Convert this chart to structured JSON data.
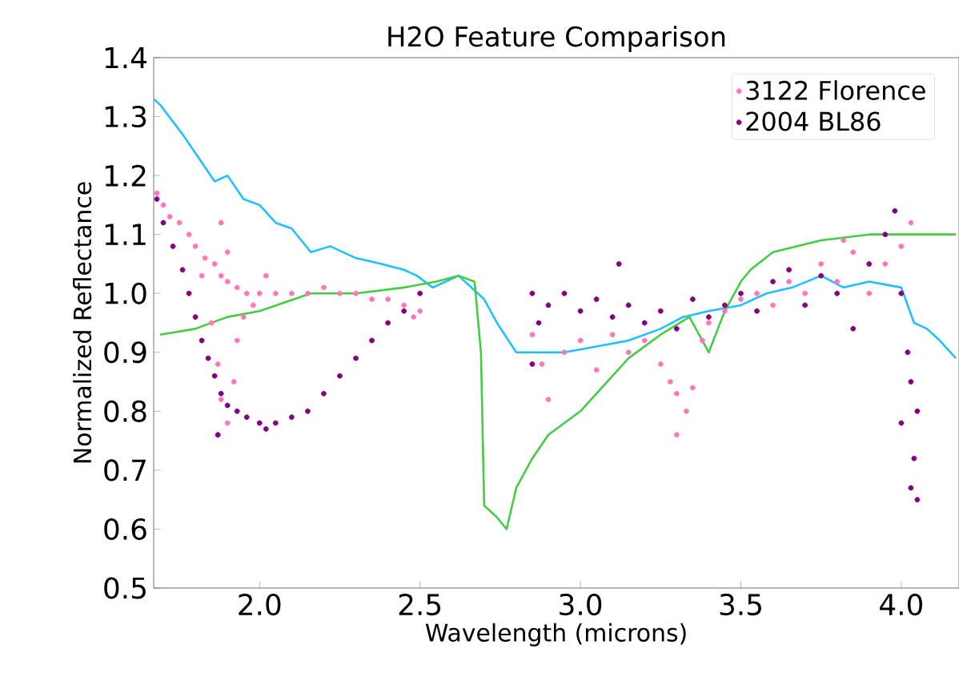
{
  "chart_data": {
    "type": "scatter",
    "title": "H2O Feature Comparison",
    "xlabel": "Wavelength (microns)",
    "ylabel": "Normalized Reflectance",
    "xlim": [
      1.67,
      4.18
    ],
    "ylim": [
      0.5,
      1.4
    ],
    "xticks": [
      {
        "value": 2.0,
        "label": "2.0"
      },
      {
        "value": 2.5,
        "label": "2.5"
      },
      {
        "value": 3.0,
        "label": "3.0"
      },
      {
        "value": 3.5,
        "label": "3.5"
      },
      {
        "value": 4.0,
        "label": "4.0"
      }
    ],
    "yticks": [
      0.5,
      0.6,
      0.7,
      0.8,
      0.9,
      {
        "value": 1.0,
        "label": "1.0"
      },
      1.1,
      1.2,
      1.3,
      1.4
    ],
    "grid": false,
    "legend": "top right",
    "series": [
      {
        "type": "line",
        "color": "#1ec0ff",
        "x": [
          1.67,
          1.69,
          1.76,
          1.81,
          1.86,
          1.9,
          1.95,
          2.0,
          2.05,
          2.1,
          2.16,
          2.22,
          2.3,
          2.38,
          2.45,
          2.49,
          2.54,
          2.58,
          2.62,
          2.66,
          2.7,
          2.74,
          2.8,
          2.87,
          2.95,
          3.05,
          3.15,
          3.25,
          3.32,
          3.4,
          3.5,
          3.58,
          3.66,
          3.75,
          3.82,
          3.9,
          4.0,
          4.04,
          4.08,
          4.12,
          4.17
        ],
        "values": [
          1.33,
          1.32,
          1.27,
          1.23,
          1.19,
          1.2,
          1.16,
          1.15,
          1.12,
          1.11,
          1.07,
          1.08,
          1.06,
          1.05,
          1.04,
          1.03,
          1.01,
          1.02,
          1.03,
          1.01,
          0.99,
          0.95,
          0.9,
          0.9,
          0.9,
          0.91,
          0.92,
          0.94,
          0.96,
          0.97,
          0.98,
          1.0,
          1.01,
          1.03,
          1.01,
          1.02,
          1.01,
          0.95,
          0.94,
          0.92,
          0.89
        ]
      },
      {
        "type": "line",
        "color": "#44cc44",
        "x": [
          1.69,
          1.8,
          1.9,
          2.0,
          2.16,
          2.3,
          2.45,
          2.55,
          2.62,
          2.67,
          2.69,
          2.7,
          2.74,
          2.77,
          2.8,
          2.85,
          2.9,
          3.0,
          3.15,
          3.25,
          3.34,
          3.38,
          3.4,
          3.45,
          3.5,
          3.53,
          3.6,
          3.75,
          3.9,
          4.0,
          4.05,
          4.17
        ],
        "values": [
          0.93,
          0.94,
          0.96,
          0.97,
          1.0,
          1.0,
          1.01,
          1.02,
          1.03,
          1.02,
          0.9,
          0.64,
          0.62,
          0.6,
          0.67,
          0.72,
          0.76,
          0.8,
          0.89,
          0.93,
          0.96,
          0.92,
          0.9,
          0.97,
          1.02,
          1.04,
          1.07,
          1.09,
          1.1,
          1.1,
          1.1,
          1.1
        ]
      },
      {
        "name": "3122 Florence",
        "marker": "circle",
        "color": "#ff77bb",
        "x": [
          1.68,
          1.7,
          1.72,
          1.75,
          1.78,
          1.8,
          1.83,
          1.86,
          1.88,
          1.9,
          1.93,
          1.96,
          2.0,
          2.05,
          2.1,
          2.15,
          2.2,
          2.25,
          2.3,
          2.35,
          2.4,
          2.45,
          2.48,
          2.5,
          1.82,
          1.85,
          1.87,
          1.88,
          1.87,
          1.9,
          1.92,
          1.93,
          1.95,
          1.88,
          1.9,
          1.98,
          2.02,
          2.85,
          2.88,
          2.9,
          2.95,
          3.0,
          3.05,
          3.1,
          3.15,
          3.2,
          3.25,
          3.28,
          3.3,
          3.33,
          3.35,
          3.38,
          3.4,
          3.45,
          3.5,
          3.55,
          3.6,
          3.65,
          3.7,
          3.75,
          3.8,
          3.85,
          3.9,
          3.95,
          4.0,
          4.03,
          3.82,
          3.3
        ],
        "values": [
          1.17,
          1.15,
          1.13,
          1.12,
          1.1,
          1.08,
          1.06,
          1.05,
          1.03,
          1.02,
          1.01,
          1.0,
          1.0,
          1.0,
          1.0,
          1.0,
          1.01,
          1.0,
          1.0,
          0.99,
          0.99,
          0.98,
          0.96,
          0.97,
          1.03,
          0.95,
          0.88,
          0.82,
          0.76,
          0.78,
          0.85,
          0.92,
          0.96,
          1.12,
          1.07,
          0.98,
          1.03,
          0.93,
          0.88,
          0.82,
          0.9,
          0.92,
          0.87,
          0.93,
          0.9,
          0.92,
          0.88,
          0.85,
          0.83,
          0.8,
          0.84,
          0.92,
          0.95,
          0.97,
          0.99,
          1.0,
          0.98,
          1.02,
          1.0,
          1.05,
          1.02,
          1.07,
          1.0,
          1.05,
          1.08,
          1.12,
          1.09,
          0.76
        ]
      },
      {
        "name": "2004 BL86",
        "marker": "circle",
        "color": "#800080",
        "x": [
          1.68,
          1.7,
          1.73,
          1.76,
          1.78,
          1.8,
          1.82,
          1.84,
          1.86,
          1.88,
          1.9,
          1.93,
          1.96,
          2.0,
          2.05,
          2.1,
          2.15,
          2.2,
          2.25,
          2.3,
          2.35,
          2.4,
          2.45,
          2.5,
          1.87,
          2.02,
          2.85,
          2.87,
          2.9,
          2.95,
          3.0,
          3.05,
          3.1,
          3.15,
          3.2,
          3.25,
          3.3,
          3.35,
          3.4,
          3.45,
          3.5,
          3.55,
          3.6,
          3.65,
          3.7,
          3.75,
          3.8,
          3.85,
          3.9,
          3.95,
          3.98,
          4.0,
          4.02,
          4.03,
          4.05,
          4.04,
          4.03,
          4.05,
          2.85,
          3.12,
          4.0
        ],
        "values": [
          1.16,
          1.12,
          1.08,
          1.04,
          1.0,
          0.96,
          0.92,
          0.89,
          0.86,
          0.83,
          0.81,
          0.8,
          0.79,
          0.78,
          0.78,
          0.79,
          0.8,
          0.83,
          0.86,
          0.89,
          0.92,
          0.95,
          0.97,
          1.0,
          0.76,
          0.77,
          1.0,
          0.95,
          0.98,
          1.0,
          0.97,
          0.99,
          0.96,
          0.98,
          0.95,
          0.97,
          0.94,
          0.99,
          0.96,
          0.98,
          1.0,
          0.97,
          1.02,
          1.04,
          0.98,
          1.03,
          1.0,
          0.94,
          1.05,
          1.1,
          1.14,
          1.0,
          0.9,
          0.85,
          0.8,
          0.72,
          0.67,
          0.65,
          0.88,
          1.05,
          0.78
        ]
      }
    ]
  }
}
